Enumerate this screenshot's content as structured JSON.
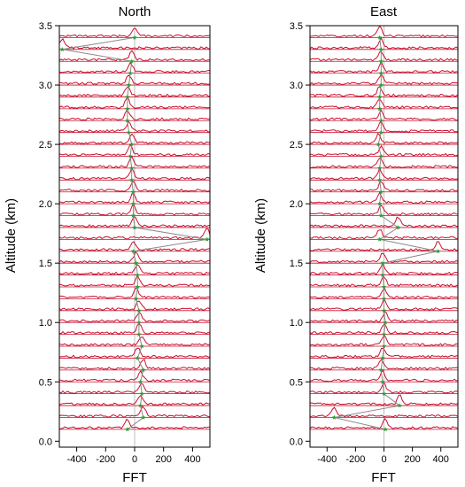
{
  "chart_data": [
    {
      "type": "line",
      "title": "North",
      "xlabel": "FFT",
      "ylabel": "Altitude (km)",
      "xlim": [
        -520,
        520
      ],
      "ylim": [
        -0.05,
        3.5
      ],
      "xticks": [
        -400,
        -200,
        0,
        200,
        400
      ],
      "yticks": [
        0.0,
        0.5,
        1.0,
        1.5,
        2.0,
        2.5,
        3.0,
        3.5
      ],
      "spectrum_color": "#c8102e",
      "profile_color": "#8a8a8a",
      "marker_color": "#2e9e2e",
      "altitude_gates_km": [
        0.1,
        0.2,
        0.3,
        0.4,
        0.5,
        0.6,
        0.7,
        0.8,
        0.9,
        1.0,
        1.1,
        1.2,
        1.3,
        1.4,
        1.5,
        1.6,
        1.7,
        1.8,
        1.9,
        2.0,
        2.1,
        2.2,
        2.3,
        2.4,
        2.5,
        2.6,
        2.7,
        2.8,
        2.9,
        3.0,
        3.1,
        3.2,
        3.3,
        3.4
      ],
      "peak_velocity": [
        -50,
        60,
        40,
        50,
        40,
        60,
        20,
        50,
        30,
        30,
        30,
        10,
        20,
        20,
        10,
        -10,
        500,
        0,
        -10,
        -10,
        -10,
        -20,
        -20,
        -30,
        -20,
        -40,
        -50,
        -50,
        -50,
        -40,
        -30,
        -20,
        -500,
        0
      ]
    },
    {
      "type": "line",
      "title": "East",
      "xlabel": "FFT",
      "ylabel": "Altitude (km)",
      "xlim": [
        -520,
        520
      ],
      "ylim": [
        -0.05,
        3.5
      ],
      "xticks": [
        -400,
        -200,
        0,
        200,
        400
      ],
      "yticks": [
        0.0,
        0.5,
        1.0,
        1.5,
        2.0,
        2.5,
        3.0,
        3.5
      ],
      "spectrum_color": "#c8102e",
      "profile_color": "#8a8a8a",
      "marker_color": "#2e9e2e",
      "altitude_gates_km": [
        0.1,
        0.2,
        0.3,
        0.4,
        0.5,
        0.6,
        0.7,
        0.8,
        0.9,
        1.0,
        1.1,
        1.2,
        1.3,
        1.4,
        1.5,
        1.6,
        1.7,
        1.8,
        1.9,
        2.0,
        2.1,
        2.2,
        2.3,
        2.4,
        2.5,
        2.6,
        2.7,
        2.8,
        2.9,
        3.0,
        3.1,
        3.2,
        3.3,
        3.4
      ],
      "peak_velocity": [
        10,
        -350,
        110,
        0,
        -10,
        -20,
        -10,
        0,
        0,
        10,
        0,
        0,
        0,
        -10,
        -10,
        380,
        -30,
        100,
        -20,
        -30,
        -20,
        -30,
        -30,
        -20,
        -40,
        -20,
        -20,
        -30,
        -30,
        -20,
        -20,
        -20,
        -20,
        -30
      ]
    }
  ]
}
